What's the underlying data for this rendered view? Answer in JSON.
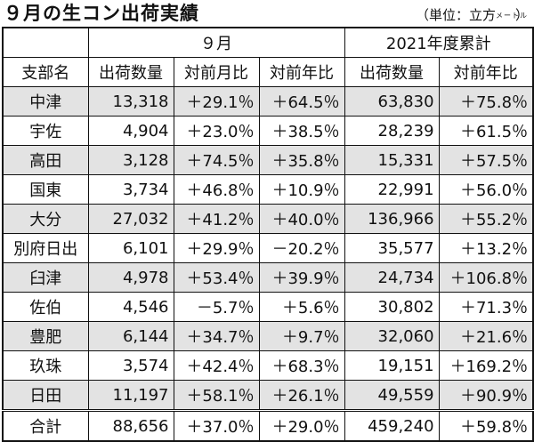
{
  "title": "９月の生コン出荷実績",
  "unit": {
    "prefix": "（単位：立方",
    "small": "メートル",
    "suffix": "）"
  },
  "header": {
    "group_month": "９月",
    "group_ytd": "2021年度累計",
    "columns": [
      "支部名",
      "出荷数量",
      "対前月比",
      "対前年比",
      "出荷数量",
      "対前年比"
    ]
  },
  "rows": [
    {
      "name": "中津",
      "qty": "13,318",
      "mom": "＋29.1％",
      "yoy": "＋64.5％",
      "ytd_qty": "63,830",
      "ytd_yoy": "＋75.8％"
    },
    {
      "name": "宇佐",
      "qty": "4,904",
      "mom": "＋23.0％",
      "yoy": "＋38.5％",
      "ytd_qty": "28,239",
      "ytd_yoy": "＋61.5％"
    },
    {
      "name": "高田",
      "qty": "3,128",
      "mom": "＋74.5％",
      "yoy": "＋35.8％",
      "ytd_qty": "15,331",
      "ytd_yoy": "＋57.5％"
    },
    {
      "name": "国東",
      "qty": "3,734",
      "mom": "＋46.8％",
      "yoy": "＋10.9％",
      "ytd_qty": "22,991",
      "ytd_yoy": "＋56.0％"
    },
    {
      "name": "大分",
      "qty": "27,032",
      "mom": "＋41.2％",
      "yoy": "＋40.0％",
      "ytd_qty": "136,966",
      "ytd_yoy": "＋55.2％"
    },
    {
      "name": "別府日出",
      "qty": "6,101",
      "mom": "＋29.9％",
      "yoy": "－20.2％",
      "ytd_qty": "35,577",
      "ytd_yoy": "＋13.2％"
    },
    {
      "name": "臼津",
      "qty": "4,978",
      "mom": "＋53.4％",
      "yoy": "＋39.9％",
      "ytd_qty": "24,734",
      "ytd_yoy": "＋106.8％"
    },
    {
      "name": "佐伯",
      "qty": "4,546",
      "mom": "－5.7％",
      "yoy": "＋5.6％",
      "ytd_qty": "30,802",
      "ytd_yoy": "＋71.3％"
    },
    {
      "name": "豊肥",
      "qty": "6,144",
      "mom": "＋34.7％",
      "yoy": "＋9.7％",
      "ytd_qty": "32,060",
      "ytd_yoy": "＋21.6％"
    },
    {
      "name": "玖珠",
      "qty": "3,574",
      "mom": "＋42.4％",
      "yoy": "＋68.3％",
      "ytd_qty": "19,151",
      "ytd_yoy": "＋169.2％"
    },
    {
      "name": "日田",
      "qty": "11,197",
      "mom": "＋58.1％",
      "yoy": "＋26.1％",
      "ytd_qty": "49,559",
      "ytd_yoy": "＋90.9％"
    },
    {
      "name": "合計",
      "qty": "88,656",
      "mom": "＋37.0％",
      "yoy": "＋29.0％",
      "ytd_qty": "459,240",
      "ytd_yoy": "＋59.8％"
    }
  ]
}
